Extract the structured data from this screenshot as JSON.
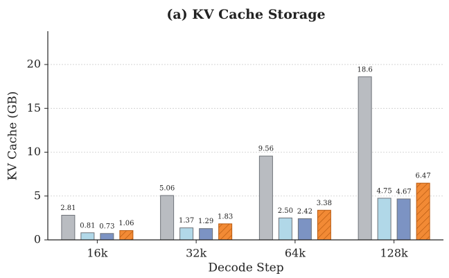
{
  "chart_data": {
    "type": "bar",
    "title": "(a) KV Cache Storage",
    "x_label": "Decode Step",
    "y_label": "KV Cache (GB)",
    "categories": [
      "16k",
      "32k",
      "64k",
      "128k"
    ],
    "series": [
      {
        "color": "#b9bcc1",
        "values": [
          2.81,
          5.06,
          9.56,
          18.6
        ],
        "value_labels": [
          "2.81",
          "5.06",
          "9.56",
          "18.6"
        ]
      },
      {
        "color": "#b1d8e8",
        "values": [
          0.81,
          1.37,
          2.5,
          4.75
        ],
        "value_labels": [
          "0.81",
          "1.37",
          "2.50",
          "4.75"
        ]
      },
      {
        "color": "#7c93c3",
        "values": [
          0.73,
          1.29,
          2.42,
          4.67
        ],
        "value_labels": [
          "0.73",
          "1.29",
          "2.42",
          "4.67"
        ]
      },
      {
        "color": "#f28a35",
        "hatch": true,
        "values": [
          1.06,
          1.83,
          3.38,
          6.47
        ],
        "value_labels": [
          "1.06",
          "1.83",
          "3.38",
          "6.47"
        ]
      }
    ],
    "ylim": [
      0,
      23.8
    ],
    "yticks": [
      0,
      5,
      10,
      15,
      20
    ],
    "grid": true
  }
}
